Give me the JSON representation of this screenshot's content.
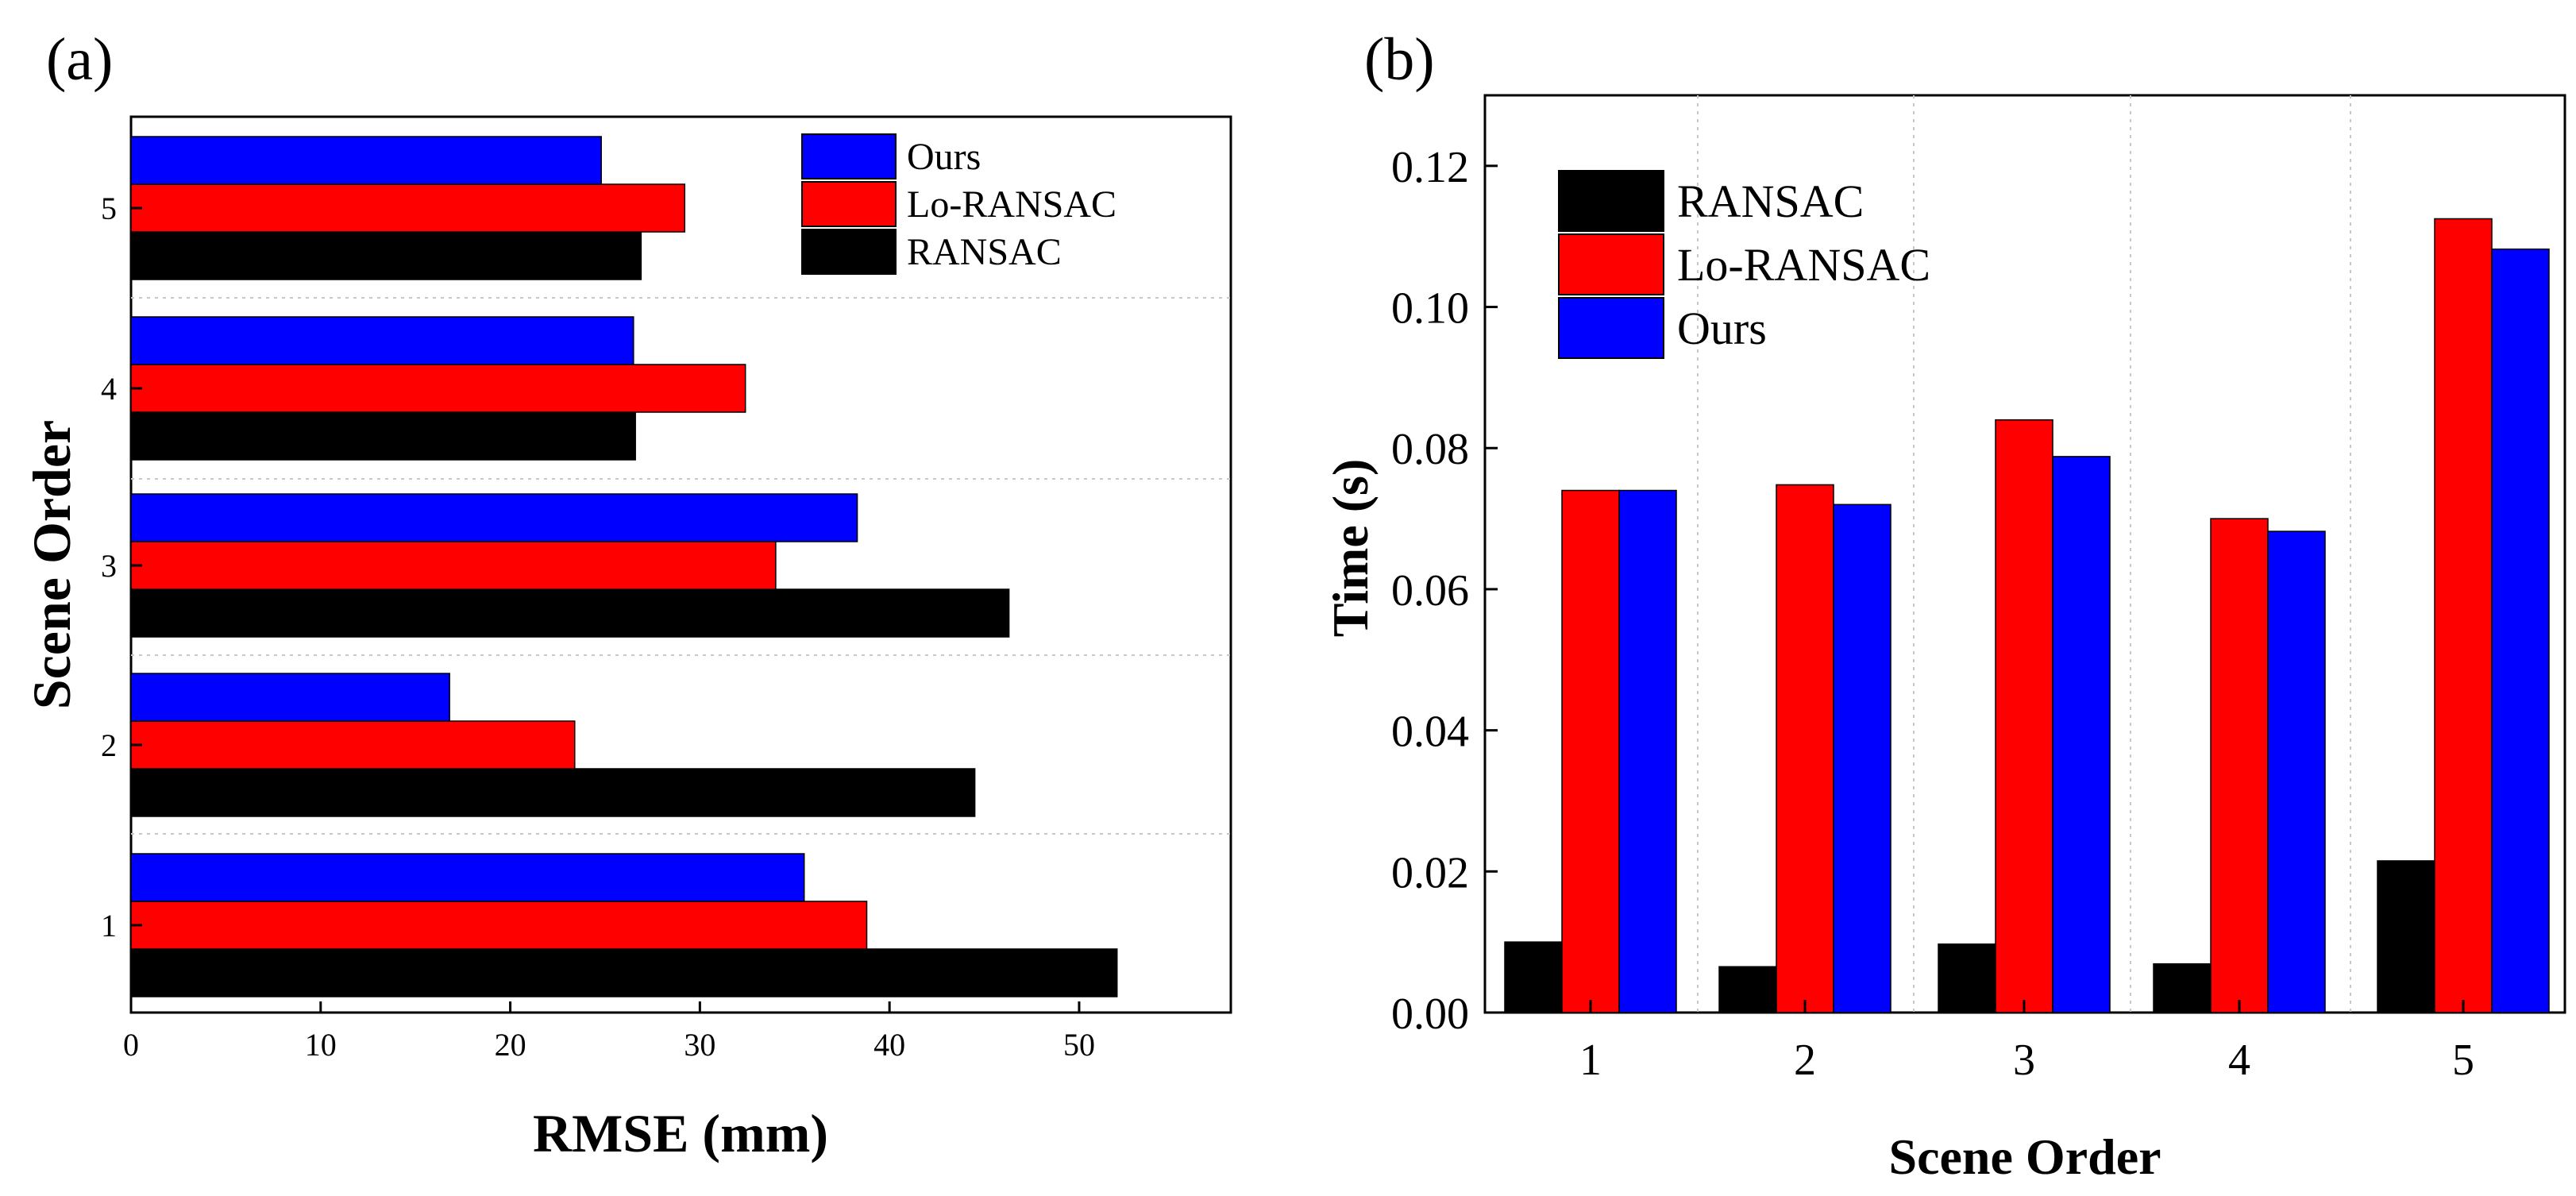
{
  "chart_data": [
    {
      "panel": "(a)",
      "type": "bar",
      "orientation": "horizontal",
      "categories": [
        "1",
        "2",
        "3",
        "4",
        "5"
      ],
      "series": [
        {
          "name": "RANSAC",
          "color": "#000000",
          "values": [
            52.0,
            44.5,
            46.3,
            26.6,
            26.9
          ]
        },
        {
          "name": "Lo-RANSAC",
          "color": "#ff0000",
          "values": [
            38.8,
            23.4,
            34.0,
            32.4,
            29.2
          ]
        },
        {
          "name": "Ours",
          "color": "#0000ff",
          "values": [
            35.5,
            16.8,
            38.3,
            26.5,
            24.8
          ]
        }
      ],
      "legend_order": [
        "Ours",
        "Lo-RANSAC",
        "RANSAC"
      ],
      "xlabel": "RMSE (mm)",
      "ylabel": "Scene Order",
      "xlim": [
        0,
        58
      ],
      "xticks": [
        "0",
        "10",
        "20",
        "30",
        "40",
        "50"
      ],
      "legend": "top-right"
    },
    {
      "panel": "(b)",
      "type": "bar",
      "orientation": "vertical",
      "categories": [
        "1",
        "2",
        "3",
        "4",
        "5"
      ],
      "series": [
        {
          "name": "RANSAC",
          "color": "#000000",
          "values": [
            0.01,
            0.0065,
            0.0097,
            0.0069,
            0.0215
          ]
        },
        {
          "name": "Lo-RANSAC",
          "color": "#ff0000",
          "values": [
            0.074,
            0.0748,
            0.084,
            0.07,
            0.1125
          ]
        },
        {
          "name": "Ours",
          "color": "#0000ff",
          "values": [
            0.074,
            0.072,
            0.0788,
            0.0682,
            0.1082
          ]
        }
      ],
      "legend_order": [
        "RANSAC",
        "Lo-RANSAC",
        "Ours"
      ],
      "xlabel": "Scene Order",
      "ylabel": "Time (s)",
      "ylim": [
        0,
        0.13
      ],
      "yticks": [
        "0.00",
        "0.02",
        "0.04",
        "0.06",
        "0.08",
        "0.10",
        "0.12"
      ],
      "legend": "top-left"
    }
  ]
}
